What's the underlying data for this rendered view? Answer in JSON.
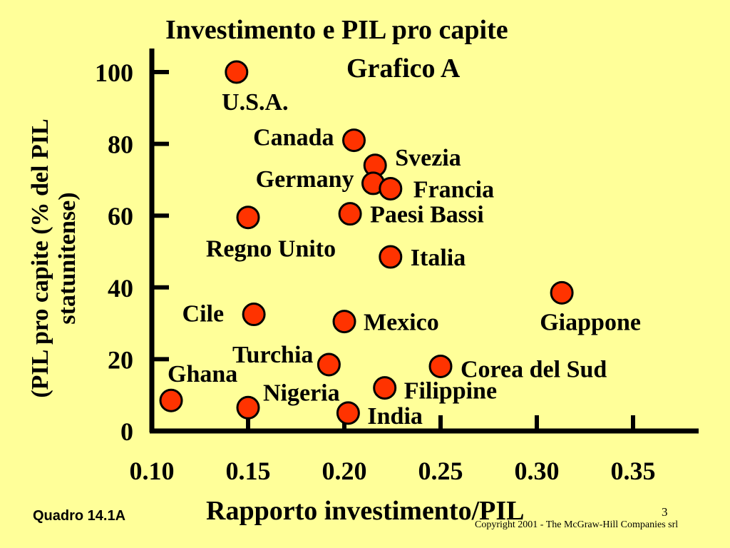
{
  "chart_data": {
    "type": "scatter",
    "title": "Investimento e PIL pro capite",
    "subtitle": "Grafico A",
    "xlabel": "Rapporto investimento/PIL",
    "ylabel_lines": [
      "(PIL pro capite (%  del PIL",
      "statunitense)"
    ],
    "xlim": [
      0.1,
      0.385
    ],
    "ylim": [
      0,
      105
    ],
    "x_ticks": [
      0.1,
      0.15,
      0.2,
      0.25,
      0.3,
      0.35
    ],
    "x_tick_labels": [
      "0.10",
      "0.15",
      "0.20",
      "0.25",
      "0.30",
      "0.35"
    ],
    "y_ticks": [
      0,
      20,
      40,
      60,
      80,
      100
    ],
    "y_tick_labels": [
      "0",
      "20",
      "40",
      "60",
      "80",
      "100"
    ],
    "grid": false,
    "point_color": "#FF3300",
    "points": [
      {
        "label": "U.S.A.",
        "x": 0.144,
        "y": 100
      },
      {
        "label": "Canada",
        "x": 0.205,
        "y": 81
      },
      {
        "label": "Svezia",
        "x": 0.216,
        "y": 74
      },
      {
        "label": "Germany",
        "x": 0.215,
        "y": 69
      },
      {
        "label": "Francia",
        "x": 0.224,
        "y": 67.5
      },
      {
        "label": "Paesi Bassi",
        "x": 0.203,
        "y": 60.5
      },
      {
        "label": "Regno Unito",
        "x": 0.15,
        "y": 59.5
      },
      {
        "label": "Italia",
        "x": 0.224,
        "y": 48.5
      },
      {
        "label": "Giappone",
        "x": 0.313,
        "y": 38.5
      },
      {
        "label": "Cile",
        "x": 0.153,
        "y": 32.5
      },
      {
        "label": "Mexico",
        "x": 0.2,
        "y": 30.5
      },
      {
        "label": "Turchia",
        "x": 0.192,
        "y": 18.5
      },
      {
        "label": "Corea del Sud",
        "x": 0.25,
        "y": 18
      },
      {
        "label": "Ghana",
        "x": 0.11,
        "y": 8.5
      },
      {
        "label": "Nigeria",
        "x": 0.15,
        "y": 6.5
      },
      {
        "label": "Filippine",
        "x": 0.221,
        "y": 12
      },
      {
        "label": "India",
        "x": 0.202,
        "y": 5
      }
    ]
  },
  "footer": {
    "figure_ref": "Quadro 14.1A",
    "page_number": "3",
    "copyright": "Copyright 2001 - The McGraw-Hill Companies srl"
  }
}
